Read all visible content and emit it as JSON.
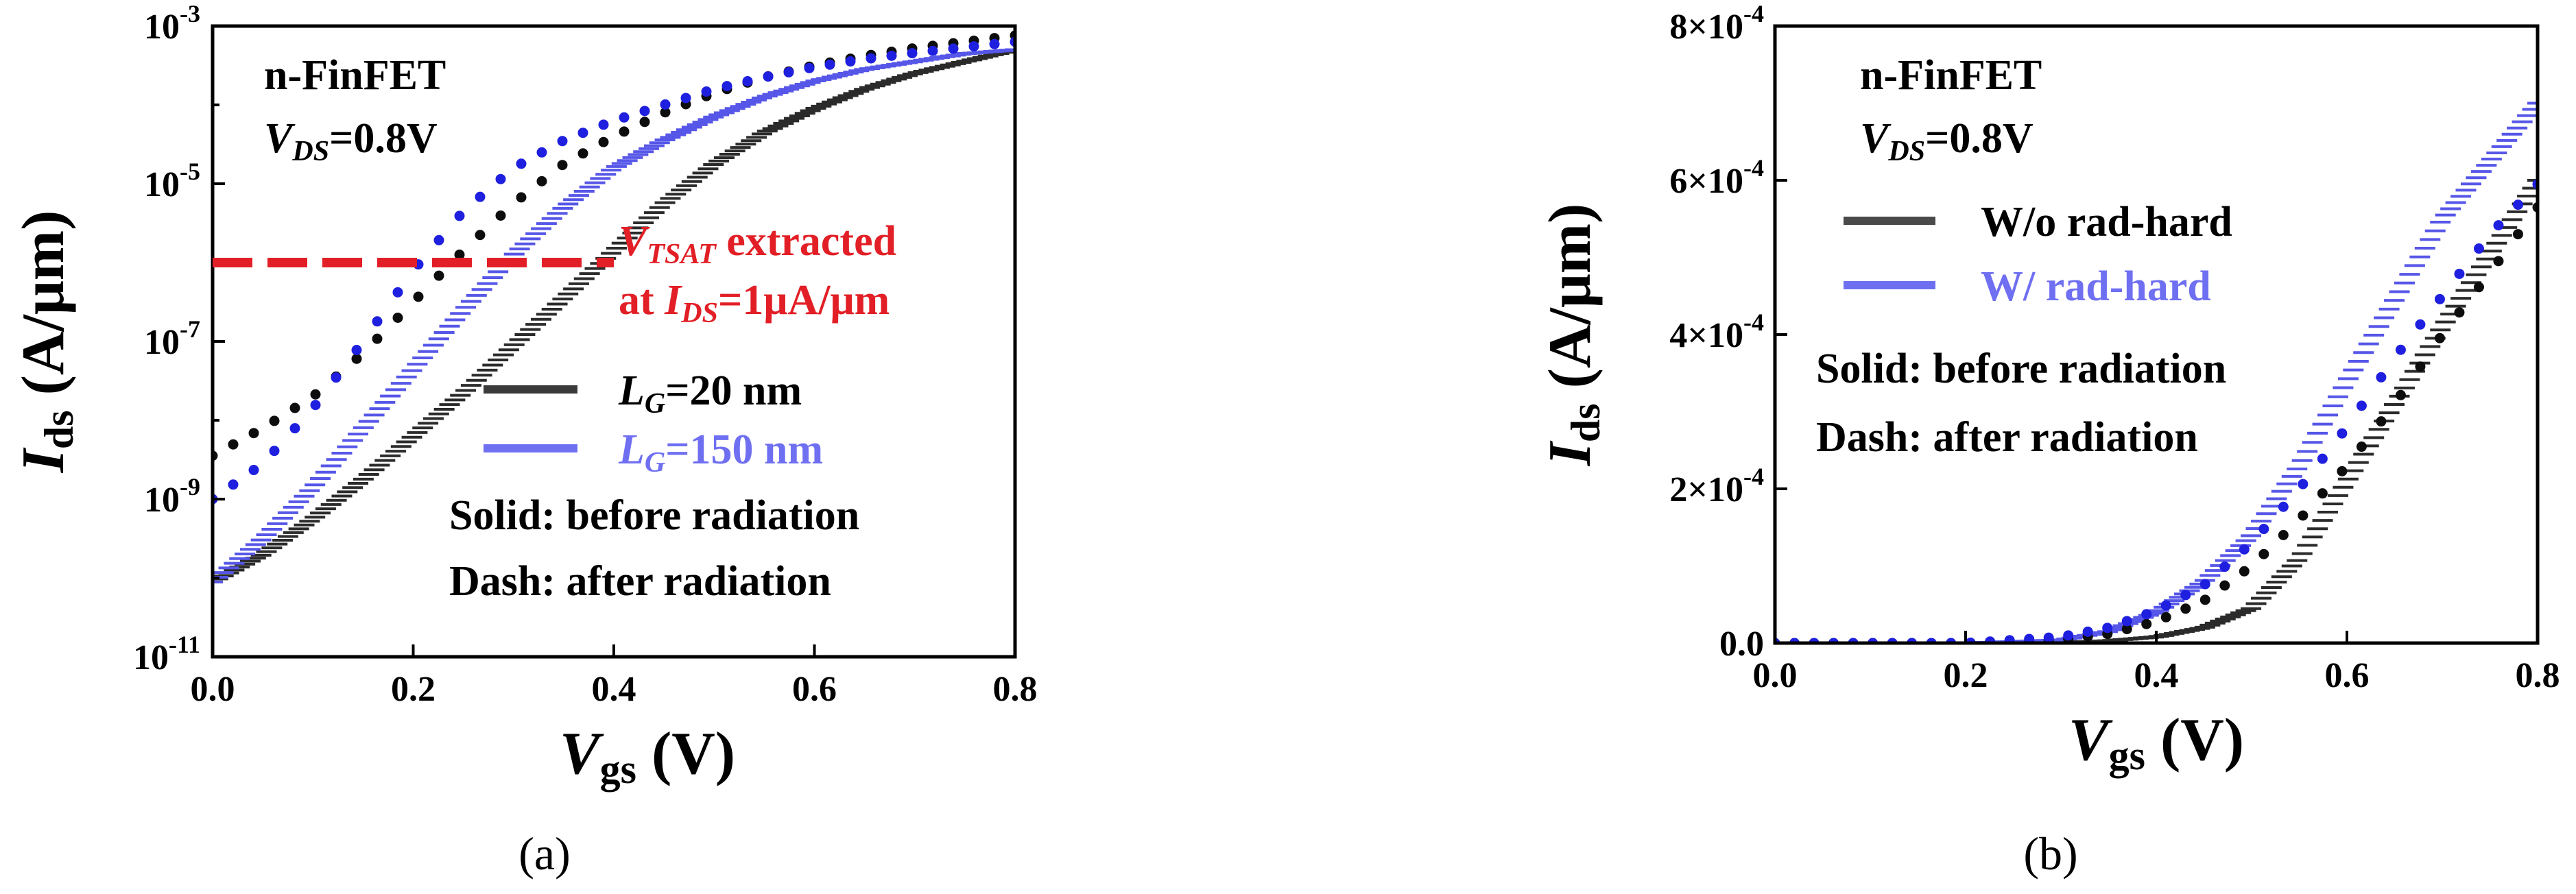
{
  "captions": {
    "a": "(a)",
    "b": "(b)"
  },
  "chart_data": [
    {
      "id": "a",
      "type": "line",
      "yscale": "log",
      "xlim": [
        0.0,
        0.8
      ],
      "ylim_exp": [
        -11,
        -3
      ],
      "xticks": [
        "0.0",
        "0.2",
        "0.4",
        "0.6",
        "0.8"
      ],
      "xtick_values": [
        0.0,
        0.2,
        0.4,
        0.6,
        0.8
      ],
      "yticks": [
        {
          "base": "10",
          "exp": "-11",
          "value": -11
        },
        {
          "base": "10",
          "exp": "-9",
          "value": -9
        },
        {
          "base": "10",
          "exp": "-7",
          "value": -7
        },
        {
          "base": "10",
          "exp": "-5",
          "value": -5
        },
        {
          "base": "10",
          "exp": "-3",
          "value": -3
        }
      ],
      "xlabel": {
        "main": "V",
        "sub": "gs",
        "unit": " (V)"
      },
      "ylabel": {
        "main": "I",
        "sub": "ds",
        "unit": " (A/μm)"
      },
      "annotation_title": {
        "line1": "n-FinFET",
        "line2_main": "V",
        "line2_sub": "DS",
        "line2_rest": "=0.8V"
      },
      "vtsat_line": {
        "ids": 1e-06,
        "x_range": [
          0.0,
          0.4
        ],
        "color": "#e21f26"
      },
      "vtsat_text": {
        "l1_main": "V",
        "l1_sub": "TSAT",
        "l1_rest": " extracted",
        "l2_a": "at ",
        "l2_main": "I",
        "l2_sub": "DS",
        "l2_rest": "=1μA/μm"
      },
      "legend": [
        {
          "label_main": "L",
          "label_sub": "G",
          "label_rest": "=20 nm",
          "color": "#3a3a3a",
          "text_color": "#000000"
        },
        {
          "label_main": "L",
          "label_sub": "G",
          "label_rest": "=150 nm",
          "color": "#6f6ff2",
          "text_color": "#6f6ff2"
        }
      ],
      "notes": [
        "Solid: before radiation",
        "Dash: after radiation"
      ],
      "series": [
        {
          "name": "LG=20 nm before radiation",
          "style": "hatched",
          "color": "#2b2b2b",
          "x": [
            0.0,
            0.05,
            0.1,
            0.15,
            0.2,
            0.25,
            0.3,
            0.35,
            0.4,
            0.45,
            0.5,
            0.55,
            0.6,
            0.65,
            0.7,
            0.75,
            0.8
          ],
          "log10_y": [
            -10.05,
            -9.7,
            -9.25,
            -8.75,
            -8.2,
            -7.65,
            -7.05,
            -6.45,
            -5.85,
            -5.25,
            -4.75,
            -4.35,
            -4.05,
            -3.8,
            -3.6,
            -3.45,
            -3.3
          ]
        },
        {
          "name": "LG=150 nm before radiation",
          "style": "hatched",
          "color": "#5656e8",
          "x": [
            0.0,
            0.05,
            0.1,
            0.15,
            0.2,
            0.25,
            0.3,
            0.35,
            0.4,
            0.45,
            0.5,
            0.55,
            0.6,
            0.65,
            0.7,
            0.75,
            0.8
          ],
          "log10_y": [
            -10.05,
            -9.5,
            -8.85,
            -8.1,
            -7.35,
            -6.6,
            -5.9,
            -5.3,
            -4.8,
            -4.45,
            -4.15,
            -3.9,
            -3.7,
            -3.55,
            -3.45,
            -3.35,
            -3.3
          ]
        },
        {
          "name": "LG=20 nm after radiation",
          "style": "dots",
          "color": "#0d0d0d",
          "x": [
            0.0,
            0.05,
            0.1,
            0.15,
            0.2,
            0.25,
            0.3,
            0.35,
            0.4,
            0.45,
            0.5,
            0.55,
            0.6,
            0.65,
            0.7,
            0.75,
            0.8
          ],
          "log10_y": [
            -8.45,
            -8.1,
            -7.7,
            -7.15,
            -6.5,
            -5.85,
            -5.25,
            -4.75,
            -4.4,
            -4.1,
            -3.85,
            -3.65,
            -3.5,
            -3.38,
            -3.28,
            -3.2,
            -3.12
          ]
        },
        {
          "name": "LG=150 nm after radiation",
          "style": "dots",
          "color": "#1f1fe0",
          "x": [
            0.0,
            0.05,
            0.1,
            0.15,
            0.2,
            0.25,
            0.3,
            0.35,
            0.4,
            0.45,
            0.5,
            0.55,
            0.6,
            0.65,
            0.7,
            0.75,
            0.8
          ],
          "log10_y": [
            -9.0,
            -8.55,
            -7.85,
            -7.0,
            -6.1,
            -5.35,
            -4.8,
            -4.45,
            -4.2,
            -4.0,
            -3.8,
            -3.65,
            -3.52,
            -3.42,
            -3.34,
            -3.27,
            -3.2
          ]
        }
      ]
    },
    {
      "id": "b",
      "type": "line",
      "yscale": "linear",
      "xlim": [
        0.0,
        0.8
      ],
      "ylim": [
        0.0,
        0.0008
      ],
      "xticks": [
        "0.0",
        "0.2",
        "0.4",
        "0.6",
        "0.8"
      ],
      "xtick_values": [
        0.0,
        0.2,
        0.4,
        0.6,
        0.8
      ],
      "yticks": [
        {
          "mant": "0.0",
          "exp": "",
          "value": 0.0
        },
        {
          "mant": "2×10",
          "exp": "-4",
          "value": 0.0002
        },
        {
          "mant": "4×10",
          "exp": "-4",
          "value": 0.0004
        },
        {
          "mant": "6×10",
          "exp": "-4",
          "value": 0.0006
        },
        {
          "mant": "8×10",
          "exp": "-4",
          "value": 0.0008
        }
      ],
      "xlabel": {
        "main": "V",
        "sub": "gs",
        "unit": " (V)"
      },
      "ylabel": {
        "main": "I",
        "sub": "ds",
        "unit": " (A/μm)"
      },
      "annotation_title": {
        "line1": "n-FinFET",
        "line2_main": "V",
        "line2_sub": "DS",
        "line2_rest": "=0.8V"
      },
      "legend": [
        {
          "label": "W/o rad-hard",
          "color": "#4a4a4a",
          "text_color": "#000000"
        },
        {
          "label": "W/ rad-hard",
          "color": "#6f6ff2",
          "text_color": "#6f6ff2"
        }
      ],
      "notes": [
        "Solid: before radiation",
        "Dash: after radiation"
      ],
      "series": [
        {
          "name": "W/o rad-hard before radiation",
          "style": "hatched",
          "color": "#2b2b2b",
          "x": [
            0.0,
            0.1,
            0.2,
            0.3,
            0.35,
            0.4,
            0.45,
            0.5,
            0.55,
            0.6,
            0.65,
            0.7,
            0.75,
            0.8
          ],
          "y": [
            0.0,
            0.0,
            0.0,
            1e-06,
            3e-06,
            8e-06,
            2e-05,
            4.5e-05,
            0.00011,
            0.00021,
            0.00031,
            0.00041,
            0.000505,
            0.0006
          ]
        },
        {
          "name": "W/ rad-hard before radiation",
          "style": "hatched",
          "color": "#5656e8",
          "x": [
            0.0,
            0.1,
            0.2,
            0.3,
            0.35,
            0.4,
            0.45,
            0.5,
            0.55,
            0.6,
            0.65,
            0.7,
            0.75,
            0.8
          ],
          "y": [
            0.0,
            0.0,
            0.0,
            4e-06,
            1.5e-05,
            4e-05,
            8e-05,
            0.00014,
            0.00023,
            0.00034,
            0.000445,
            0.00055,
            0.000625,
            0.0007
          ]
        },
        {
          "name": "W/o rad-hard after radiation",
          "style": "dots",
          "color": "#0d0d0d",
          "x": [
            0.0,
            0.1,
            0.2,
            0.3,
            0.35,
            0.4,
            0.45,
            0.5,
            0.55,
            0.6,
            0.65,
            0.7,
            0.75,
            0.8
          ],
          "y": [
            0.0,
            0.0,
            0.0,
            4e-06,
            1.2e-05,
            2.8e-05,
            5.5e-05,
            0.0001,
            0.00016,
            0.00023,
            0.00031,
            0.0004,
            0.00048,
            0.000565
          ]
        },
        {
          "name": "W/ rad-hard after radiation",
          "style": "dots",
          "color": "#1f1fe0",
          "x": [
            0.0,
            0.1,
            0.2,
            0.3,
            0.35,
            0.4,
            0.45,
            0.5,
            0.55,
            0.6,
            0.65,
            0.7,
            0.75,
            0.8
          ],
          "y": [
            0.0,
            0.0,
            0.0,
            8e-06,
            2e-05,
            4.2e-05,
            7.5e-05,
            0.00013,
            0.0002,
            0.00028,
            0.00037,
            0.00045,
            0.00053,
            0.000595
          ]
        }
      ]
    }
  ]
}
